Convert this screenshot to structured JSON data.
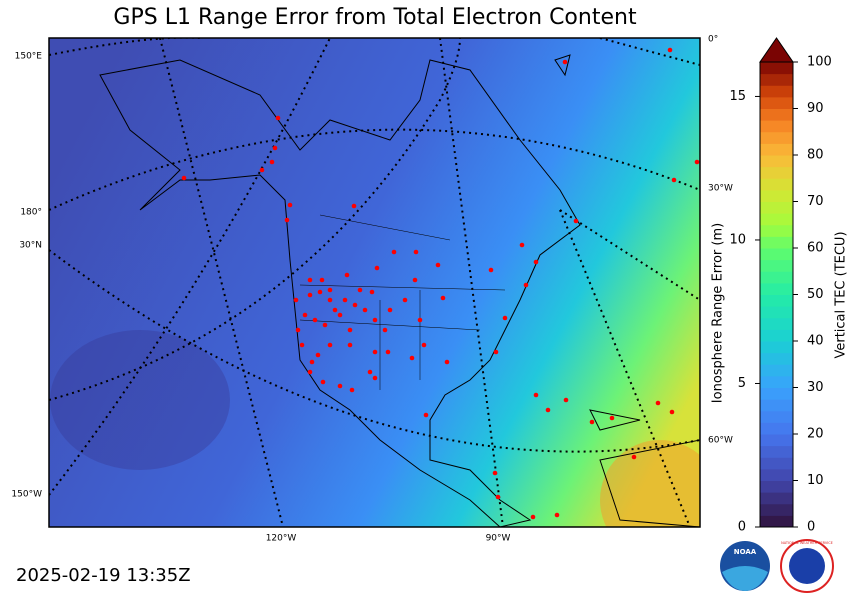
{
  "title": "GPS L1 Range Error from Total Electron Content",
  "timestamp": "2025-02-19 13:35Z",
  "graticule_labels": {
    "left": [
      "150°E",
      "180°",
      "30°N",
      "150°W"
    ],
    "bottom": [
      "120°W",
      "90°W"
    ],
    "right": [
      "0°",
      "30°W",
      "60°W"
    ]
  },
  "colorbar": {
    "label": "Vertical TEC (TECU)",
    "lim": [
      0,
      100
    ],
    "ticks": [
      0,
      10,
      20,
      30,
      40,
      50,
      60,
      70,
      80,
      90,
      100
    ],
    "range_error": {
      "label": "Ionosphere Range Error (m)",
      "lim": [
        0,
        16.2
      ],
      "ticks": [
        0,
        5,
        10,
        15
      ]
    }
  },
  "logos": {
    "noaa": "NOAA",
    "nws": "NATIONAL WEATHER SERVICE"
  }
}
